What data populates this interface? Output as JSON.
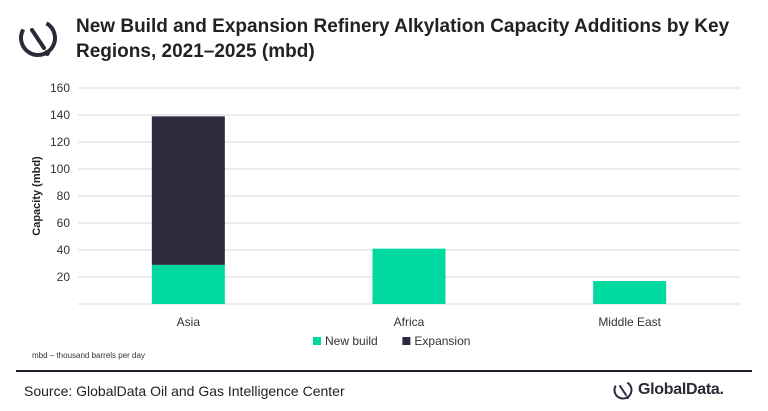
{
  "header": {
    "title": "New Build and Expansion Refinery Alkylation Capacity Additions by Key Regions, 2021–2025 (mbd)"
  },
  "chart_data": {
    "type": "bar",
    "stacked": true,
    "categories": [
      "Asia",
      "Africa",
      "Middle East"
    ],
    "series": [
      {
        "name": "New build",
        "values": [
          29,
          41,
          17
        ],
        "color": "#00d9a0"
      },
      {
        "name": "Expansion",
        "values": [
          110,
          0,
          0
        ],
        "color": "#2c2a3c"
      }
    ],
    "ylabel": "Capacity (mbd)",
    "ylim": [
      0,
      160
    ],
    "yticks": [
      20,
      40,
      60,
      80,
      100,
      120,
      140,
      160
    ],
    "grid": true,
    "legend": "bottom"
  },
  "footer": {
    "note": "mbd – thousand barrels per day",
    "source": "Source: GlobalData Oil and Gas Intelligence Center",
    "brand": "GlobalData."
  },
  "colors": {
    "grid": "#d9d9d9",
    "text": "#222222",
    "divider": "#1f1f2e"
  }
}
